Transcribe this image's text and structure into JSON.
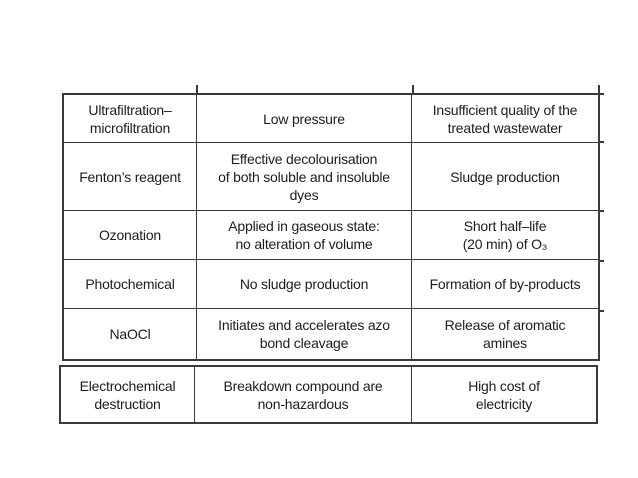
{
  "colors": {
    "background": "#ffffff",
    "border": "#3a3a3a",
    "text": "#1d1d1d"
  },
  "table": {
    "rows": [
      {
        "cells": [
          "Ultrafiltration–\nmicrofiltration",
          "Low pressure",
          "Insufficient quality of the\ntreated wastewater"
        ]
      },
      {
        "cells": [
          "Fenton’s reagent",
          "Effective decolourisation\nof both soluble and insoluble\ndyes",
          "Sludge production"
        ]
      },
      {
        "cells": [
          "Ozonation",
          "Applied in gaseous state:\nno alteration of volume",
          "Short half–life\n(20 min) of O₃"
        ]
      },
      {
        "cells": [
          "Photochemical",
          "No sludge production",
          "Formation of by-products"
        ]
      },
      {
        "cells": [
          "NaOCl",
          "Initiates and accelerates azo\nbond cleavage",
          "Release of aromatic\namines"
        ]
      },
      {
        "cells": [
          "Electrochemical\ndestruction",
          "Breakdown compound are\nnon-hazardous",
          "High cost of\nelectricity"
        ]
      }
    ]
  }
}
